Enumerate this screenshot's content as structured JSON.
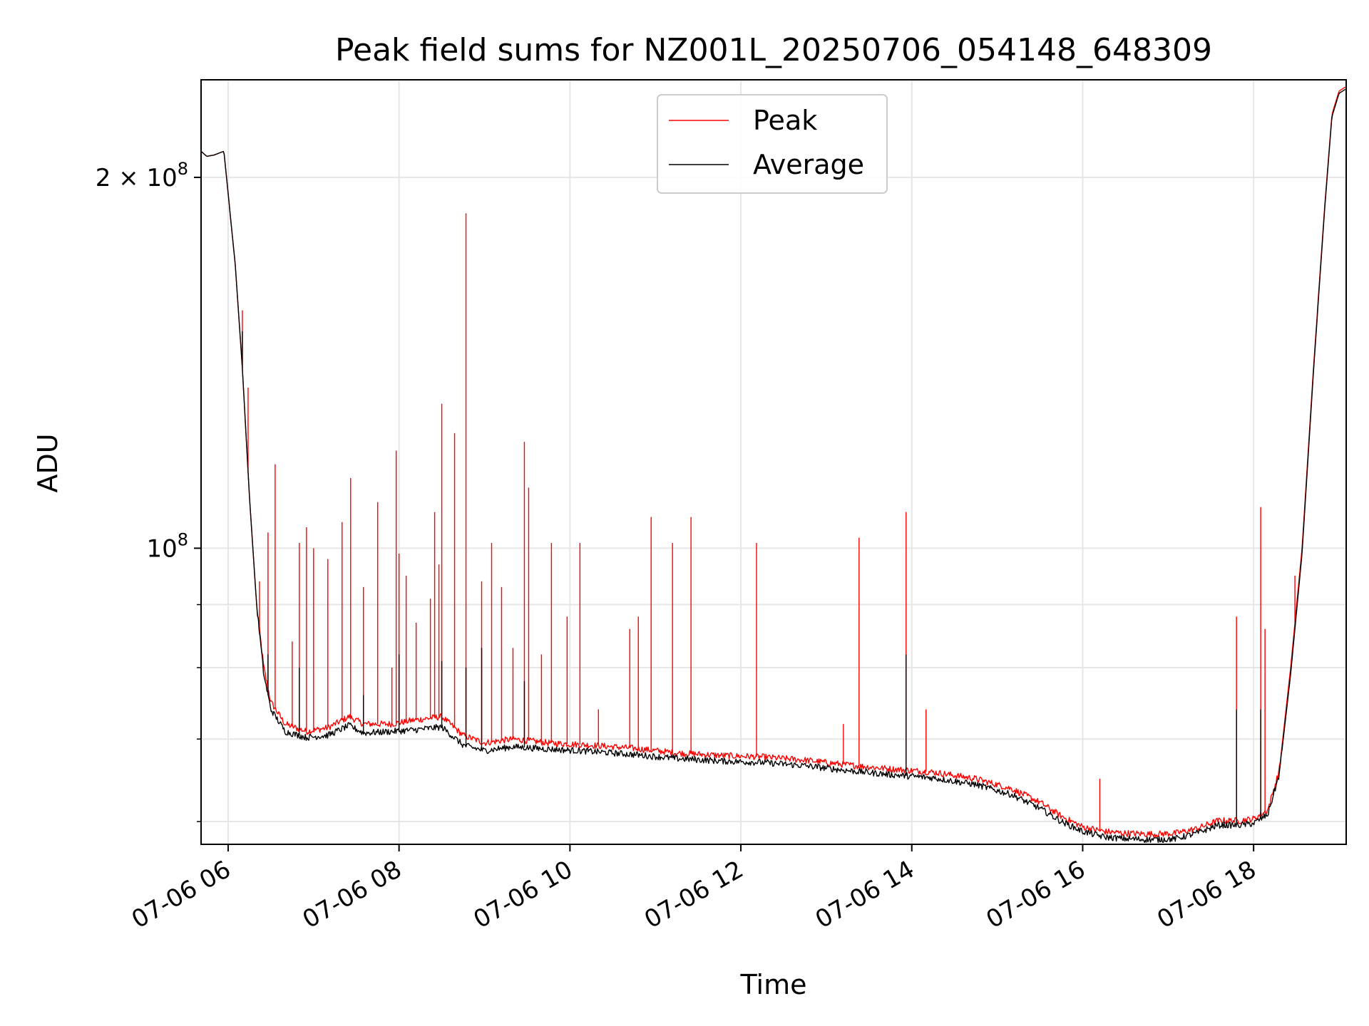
{
  "chart_data": {
    "type": "line",
    "title": "Peak field sums for NZ001L_20250706_054148_648309",
    "xlabel": "Time",
    "ylabel": "ADU",
    "yscale": "log",
    "grid": true,
    "legend_position": "top-center",
    "xlim": [
      "2025-07-06 05:41",
      "2025-07-06 19:05"
    ],
    "ylim": [
      57500000,
      240000000
    ],
    "x_ticks": [
      "07-06 06",
      "07-06 08",
      "07-06 10",
      "07-06 12",
      "07-06 14",
      "07-06 16",
      "07-06 18"
    ],
    "y_major_ticks": [
      {
        "value": 100000000,
        "label_base": "10",
        "label_exp": "8"
      },
      {
        "value": 200000000,
        "label_base": "2 × 10",
        "label_exp": "8"
      }
    ],
    "y_minor_ticks": [
      60000000,
      70000000,
      80000000,
      90000000
    ],
    "series": [
      {
        "name": "Peak",
        "color": "#ff0000",
        "points": [
          [
            "05:41",
            210000000
          ],
          [
            "05:45",
            208000000
          ],
          [
            "05:50",
            208500000
          ],
          [
            "05:57",
            210000000
          ],
          [
            "06:05",
            170000000
          ],
          [
            "06:10",
            140000000
          ],
          [
            "06:15",
            110000000
          ],
          [
            "06:20",
            90000000
          ],
          [
            "06:25",
            80000000
          ],
          [
            "06:30",
            75000000
          ],
          [
            "06:40",
            72000000
          ],
          [
            "06:55",
            71000000
          ],
          [
            "07:10",
            71500000
          ],
          [
            "07:25",
            73000000
          ],
          [
            "07:35",
            72000000
          ],
          [
            "07:55",
            72000000
          ],
          [
            "08:10",
            72500000
          ],
          [
            "08:30",
            73000000
          ],
          [
            "08:45",
            70500000
          ],
          [
            "09:00",
            69500000
          ],
          [
            "09:20",
            70000000
          ],
          [
            "09:45",
            69500000
          ],
          [
            "10:15",
            69200000
          ],
          [
            "10:45",
            68800000
          ],
          [
            "11:15",
            68200000
          ],
          [
            "11:45",
            67900000
          ],
          [
            "12:15",
            67700000
          ],
          [
            "12:45",
            67300000
          ],
          [
            "13:15",
            66700000
          ],
          [
            "13:45",
            66200000
          ],
          [
            "14:15",
            65800000
          ],
          [
            "14:45",
            65000000
          ],
          [
            "15:10",
            63800000
          ],
          [
            "15:30",
            62200000
          ],
          [
            "15:45",
            60600000
          ],
          [
            "16:00",
            59400000
          ],
          [
            "16:15",
            58900000
          ],
          [
            "16:30",
            58700000
          ],
          [
            "16:50",
            58600000
          ],
          [
            "17:05",
            58700000
          ],
          [
            "17:20",
            59200000
          ],
          [
            "17:35",
            60100000
          ],
          [
            "17:50",
            60100000
          ],
          [
            "18:00",
            60300000
          ],
          [
            "18:10",
            61300000
          ],
          [
            "18:18",
            66000000
          ],
          [
            "18:26",
            80000000
          ],
          [
            "18:34",
            100000000
          ],
          [
            "18:42",
            140000000
          ],
          [
            "18:50",
            190000000
          ],
          [
            "18:55",
            225000000
          ],
          [
            "19:00",
            235000000
          ],
          [
            "19:05",
            237000000
          ]
        ],
        "spikes": [
          [
            "06:10",
            156000000
          ],
          [
            "06:14",
            135000000
          ],
          [
            "06:22",
            94000000
          ],
          [
            "06:28",
            103000000
          ],
          [
            "06:33",
            117000000
          ],
          [
            "06:45",
            84000000
          ],
          [
            "06:50",
            101000000
          ],
          [
            "06:55",
            104000000
          ],
          [
            "07:00",
            100000000
          ],
          [
            "07:10",
            98000000
          ],
          [
            "07:20",
            105000000
          ],
          [
            "07:26",
            114000000
          ],
          [
            "07:35",
            93000000
          ],
          [
            "07:45",
            109000000
          ],
          [
            "07:55",
            80000000
          ],
          [
            "07:58",
            120000000
          ],
          [
            "08:00",
            99000000
          ],
          [
            "08:05",
            95000000
          ],
          [
            "08:12",
            87000000
          ],
          [
            "08:22",
            91000000
          ],
          [
            "08:25",
            107000000
          ],
          [
            "08:28",
            97000000
          ],
          [
            "08:30",
            131000000
          ],
          [
            "08:39",
            124000000
          ],
          [
            "08:47",
            187000000
          ],
          [
            "08:58",
            94000000
          ],
          [
            "09:05",
            101000000
          ],
          [
            "09:12",
            93000000
          ],
          [
            "09:20",
            83000000
          ],
          [
            "09:28",
            122000000
          ],
          [
            "09:31",
            112000000
          ],
          [
            "09:40",
            82000000
          ],
          [
            "09:47",
            101000000
          ],
          [
            "09:58",
            88000000
          ],
          [
            "10:07",
            101000000
          ],
          [
            "10:20",
            74000000
          ],
          [
            "10:42",
            86000000
          ],
          [
            "10:48",
            88000000
          ],
          [
            "10:57",
            106000000
          ],
          [
            "11:12",
            101000000
          ],
          [
            "11:25",
            106000000
          ],
          [
            "12:11",
            101000000
          ],
          [
            "13:12",
            72000000
          ],
          [
            "13:23",
            102000000
          ],
          [
            "13:56",
            107000000
          ],
          [
            "14:10",
            74000000
          ],
          [
            "16:12",
            65000000
          ],
          [
            "17:48",
            88000000
          ],
          [
            "18:05",
            108000000
          ],
          [
            "18:08",
            86000000
          ],
          [
            "18:29",
            95000000
          ]
        ]
      },
      {
        "name": "Average",
        "color": "#000000",
        "points": [
          [
            "05:41",
            210000000
          ],
          [
            "05:45",
            208000000
          ],
          [
            "05:50",
            208500000
          ],
          [
            "05:57",
            210000000
          ],
          [
            "06:05",
            170000000
          ],
          [
            "06:10",
            140000000
          ],
          [
            "06:15",
            110000000
          ],
          [
            "06:20",
            90000000
          ],
          [
            "06:25",
            79000000
          ],
          [
            "06:30",
            74000000
          ],
          [
            "06:40",
            71000000
          ],
          [
            "06:55",
            70200000
          ],
          [
            "07:10",
            70500000
          ],
          [
            "07:25",
            71800000
          ],
          [
            "07:35",
            70800000
          ],
          [
            "07:55",
            71000000
          ],
          [
            "08:10",
            71200000
          ],
          [
            "08:30",
            71600000
          ],
          [
            "08:45",
            69200000
          ],
          [
            "09:00",
            68500000
          ],
          [
            "09:20",
            69000000
          ],
          [
            "09:45",
            68700000
          ],
          [
            "10:15",
            68400000
          ],
          [
            "10:45",
            68000000
          ],
          [
            "11:15",
            67500000
          ],
          [
            "11:45",
            67200000
          ],
          [
            "12:15",
            67000000
          ],
          [
            "12:45",
            66600000
          ],
          [
            "13:15",
            66000000
          ],
          [
            "13:45",
            65500000
          ],
          [
            "14:15",
            65100000
          ],
          [
            "14:45",
            64300000
          ],
          [
            "15:10",
            63100000
          ],
          [
            "15:30",
            61500000
          ],
          [
            "15:45",
            60000000
          ],
          [
            "16:00",
            58900000
          ],
          [
            "16:15",
            58300000
          ],
          [
            "16:30",
            58100000
          ],
          [
            "16:50",
            58000000
          ],
          [
            "17:05",
            58100000
          ],
          [
            "17:20",
            58700000
          ],
          [
            "17:35",
            59600000
          ],
          [
            "17:50",
            59600000
          ],
          [
            "18:00",
            59800000
          ],
          [
            "18:10",
            60800000
          ],
          [
            "18:18",
            65500000
          ],
          [
            "18:26",
            79000000
          ],
          [
            "18:34",
            99000000
          ],
          [
            "18:42",
            139000000
          ],
          [
            "18:50",
            189000000
          ],
          [
            "18:55",
            224000000
          ],
          [
            "19:00",
            234000000
          ],
          [
            "19:05",
            236000000
          ]
        ],
        "spikes": [
          [
            "06:10",
            150000000
          ],
          [
            "06:28",
            82000000
          ],
          [
            "06:50",
            80000000
          ],
          [
            "07:35",
            76000000
          ],
          [
            "08:00",
            82000000
          ],
          [
            "08:30",
            81000000
          ],
          [
            "08:47",
            80000000
          ],
          [
            "08:58",
            83000000
          ],
          [
            "09:28",
            78000000
          ],
          [
            "13:56",
            82000000
          ],
          [
            "17:48",
            74000000
          ],
          [
            "18:05",
            74000000
          ]
        ]
      }
    ]
  }
}
